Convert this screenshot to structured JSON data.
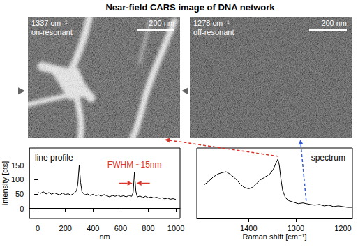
{
  "title": "Near-field CARS image of DNA network",
  "images": [
    {
      "shift": 1337,
      "unit": "cm⁻¹",
      "caption": "on-resonant",
      "scale_bar": "200 nm",
      "color": "#d9342b"
    },
    {
      "shift": 1278,
      "unit": "cm⁻¹",
      "caption": "off-resonant",
      "scale_bar": "200 nm",
      "color": "#3a5fcd"
    }
  ],
  "chart_data": [
    {
      "type": "line",
      "title": "line profile",
      "x": [
        0,
        20,
        40,
        60,
        80,
        100,
        120,
        140,
        160,
        180,
        200,
        220,
        240,
        260,
        280,
        290,
        300,
        310,
        320,
        340,
        360,
        380,
        400,
        420,
        440,
        460,
        480,
        500,
        520,
        540,
        560,
        580,
        600,
        620,
        640,
        660,
        680,
        690,
        700,
        710,
        720,
        740,
        760,
        780,
        800,
        820,
        840,
        860,
        880,
        900,
        920,
        940,
        960,
        980,
        1000
      ],
      "values": [
        56,
        52,
        58,
        50,
        55,
        49,
        54,
        50,
        47,
        53,
        48,
        51,
        46,
        52,
        60,
        85,
        150,
        90,
        58,
        47,
        50,
        45,
        49,
        44,
        47,
        43,
        48,
        44,
        40,
        45,
        42,
        46,
        41,
        44,
        40,
        45,
        42,
        55,
        125,
        60,
        40,
        43,
        38,
        42,
        37,
        40,
        36,
        39,
        35,
        37,
        33,
        36,
        32,
        34,
        31
      ],
      "color": "#000000",
      "xlabel": "nm",
      "ylabel": "intensity [cts]",
      "xlim": [
        -60,
        1030
      ],
      "ylim": [
        -35,
        210
      ],
      "xticks": [
        0,
        200,
        400,
        600,
        800,
        1000
      ],
      "yticks": [
        0,
        50,
        100,
        150
      ],
      "grid": false,
      "annotations": [
        {
          "text": "FWHM ~15nm",
          "x": 700,
          "color": "#d9342b"
        }
      ]
    },
    {
      "type": "line",
      "title": "spectrum",
      "x": [
        1495,
        1485,
        1475,
        1465,
        1455,
        1448,
        1440,
        1430,
        1420,
        1410,
        1400,
        1392,
        1385,
        1375,
        1365,
        1355,
        1348,
        1342,
        1338,
        1335,
        1332,
        1328,
        1322,
        1315,
        1305,
        1295,
        1285,
        1278,
        1270,
        1260,
        1250,
        1240,
        1230,
        1220,
        1210,
        1200,
        1190,
        1180
      ],
      "values": [
        45,
        50,
        56,
        60,
        62,
        63,
        60,
        55,
        48,
        42,
        40,
        42,
        46,
        52,
        56,
        60,
        66,
        75,
        80,
        72,
        55,
        38,
        28,
        24,
        22,
        20,
        21,
        20,
        19,
        18,
        19,
        17,
        18,
        16,
        17,
        16,
        15,
        15
      ],
      "color": "#000000",
      "xlabel": "Raman shift [cm⁻¹]",
      "xlim": [
        1510,
        1180
      ],
      "ylim": [
        0,
        95
      ],
      "xticks": [
        1400,
        1300,
        1200
      ],
      "grid": false,
      "tick_labels": "x"
    }
  ]
}
